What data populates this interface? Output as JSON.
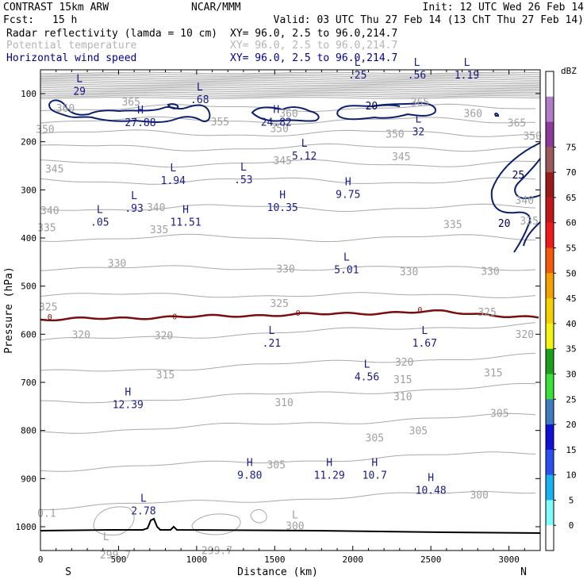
{
  "header": {
    "model": "CONTRAST 15km ARW",
    "org": "NCAR/MMM",
    "init": "Init: 12 UTC Wed 26 Feb 14",
    "fcst_label": "Fcst:",
    "fcst_value": "15 h",
    "valid": "Valid: 03 UTC Thu 27 Feb 14 (13 ChT Thu 27 Feb 14)",
    "field1_name": "Radar reflectivity (lamda = 10 cm)",
    "field1_xy": "XY=  96.0,  2.5 to  96.0,214.7",
    "field2_name": "Potential temperature",
    "field2_xy": "XY=  96.0,  2.5 to  96.0,214.7",
    "field3_name": "Horizontal wind speed",
    "field3_xy": "XY=  96.0,  2.5 to  96.0,214.7"
  },
  "chart_data": {
    "type": "contour-cross-section",
    "xlabel": "Distance (km)",
    "ylabel": "Pressure (hPa)",
    "xlim": [
      0,
      3200
    ],
    "ylim": [
      1060,
      55
    ],
    "x_ticks": [
      0,
      500,
      1000,
      1500,
      2000,
      2500,
      3000
    ],
    "y_ticks": [
      100,
      200,
      300,
      400,
      500,
      600,
      700,
      800,
      900,
      1000
    ],
    "endpoints": {
      "left": "S",
      "right": "N"
    },
    "colorbar": {
      "unit": "dBZ",
      "levels": [
        0,
        5,
        10,
        15,
        20,
        25,
        30,
        35,
        40,
        45,
        50,
        55,
        60,
        65,
        70,
        75
      ],
      "colors": [
        "#ffffff",
        "#7ffcfc",
        "#19b2f0",
        "#2b4ff0",
        "#1111d6",
        "#3f7bbf",
        "#38e038",
        "#1aa01a",
        "#f4f414",
        "#f4d000",
        "#f4a000",
        "#f45a0a",
        "#f01a1a",
        "#c01818",
        "#9b1a1a",
        "#9a5a5a",
        "#8c3a9c",
        "#b27cc8",
        "#ffffff"
      ]
    },
    "theta_labels": [
      {
        "x": 160,
        "p": 132,
        "v": "360"
      },
      {
        "x": 580,
        "p": 119,
        "v": "365"
      },
      {
        "x": 1590,
        "p": 143,
        "v": "360"
      },
      {
        "x": 2430,
        "p": 120,
        "v": "365"
      },
      {
        "x": 2770,
        "p": 143,
        "v": "360"
      },
      {
        "x": 3050,
        "p": 163,
        "v": "365"
      },
      {
        "x": 1150,
        "p": 160,
        "v": "355"
      },
      {
        "x": 30,
        "p": 176,
        "v": "350"
      },
      {
        "x": 1530,
        "p": 174,
        "v": "350"
      },
      {
        "x": 2270,
        "p": 186,
        "v": "350"
      },
      {
        "x": 3150,
        "p": 190,
        "v": "350"
      },
      {
        "x": 90,
        "p": 258,
        "v": "345"
      },
      {
        "x": 1550,
        "p": 241,
        "v": "345"
      },
      {
        "x": 2310,
        "p": 233,
        "v": "345"
      },
      {
        "x": 60,
        "p": 345,
        "v": "340"
      },
      {
        "x": 740,
        "p": 338,
        "v": "340"
      },
      {
        "x": 3100,
        "p": 323,
        "v": "340"
      },
      {
        "x": 40,
        "p": 380,
        "v": "335"
      },
      {
        "x": 760,
        "p": 384,
        "v": "335"
      },
      {
        "x": 2640,
        "p": 374,
        "v": "335"
      },
      {
        "x": 3130,
        "p": 366,
        "v": "335"
      },
      {
        "x": 490,
        "p": 454,
        "v": "330"
      },
      {
        "x": 1570,
        "p": 466,
        "v": "330"
      },
      {
        "x": 2360,
        "p": 472,
        "v": "330"
      },
      {
        "x": 2880,
        "p": 471,
        "v": "330"
      },
      {
        "x": 50,
        "p": 545,
        "v": "325"
      },
      {
        "x": 1530,
        "p": 538,
        "v": "325"
      },
      {
        "x": 2860,
        "p": 556,
        "v": "325"
      },
      {
        "x": 260,
        "p": 603,
        "v": "320"
      },
      {
        "x": 790,
        "p": 604,
        "v": "320"
      },
      {
        "x": 2330,
        "p": 660,
        "v": "320"
      },
      {
        "x": 3100,
        "p": 602,
        "v": "320"
      },
      {
        "x": 800,
        "p": 686,
        "v": "315"
      },
      {
        "x": 2320,
        "p": 696,
        "v": "315"
      },
      {
        "x": 2900,
        "p": 682,
        "v": "315"
      },
      {
        "x": 1560,
        "p": 744,
        "v": "310"
      },
      {
        "x": 2320,
        "p": 731,
        "v": "310"
      },
      {
        "x": 2940,
        "p": 766,
        "v": "305"
      },
      {
        "x": 2140,
        "p": 817,
        "v": "305"
      },
      {
        "x": 2420,
        "p": 802,
        "v": "305"
      },
      {
        "x": 1510,
        "p": 873,
        "v": "305"
      },
      {
        "x": 2810,
        "p": 936,
        "v": "300"
      },
      {
        "x": 1630,
        "p": 1000,
        "v": "300"
      },
      {
        "x": 40,
        "p": 974,
        "v": "0.1"
      },
      {
        "x": 480,
        "p": 1060,
        "v": "299.7"
      },
      {
        "x": 1130,
        "p": 1051,
        "v": "299.7"
      },
      {
        "x": 1630,
        "p": 977,
        "v": "L"
      },
      {
        "x": 420,
        "p": 1022,
        "v": "L"
      }
    ],
    "extrema": [
      {
        "x": 250,
        "p": 82,
        "type": "L",
        "v": "29"
      },
      {
        "x": 1020,
        "p": 99,
        "type": "L",
        "v": ".68"
      },
      {
        "x": 2030,
        "p": 48,
        "type": "L",
        "v": ".25"
      },
      {
        "x": 2410,
        "p": 48,
        "type": "L",
        "v": ".56"
      },
      {
        "x": 2730,
        "p": 48,
        "type": "L",
        "v": "1.19"
      },
      {
        "x": 640,
        "p": 147,
        "type": "H",
        "v": "27.88"
      },
      {
        "x": 1510,
        "p": 146,
        "type": "H",
        "v": "24.82"
      },
      {
        "x": 2420,
        "p": 166,
        "type": "L",
        "v": "32"
      },
      {
        "x": 1690,
        "p": 216,
        "type": "L",
        "v": "5.12"
      },
      {
        "x": 850,
        "p": 267,
        "type": "L",
        "v": "1.94"
      },
      {
        "x": 1300,
        "p": 266,
        "type": "L",
        "v": ".53"
      },
      {
        "x": 1970,
        "p": 296,
        "type": "H",
        "v": "9.75"
      },
      {
        "x": 1550,
        "p": 323,
        "type": "H",
        "v": "10.35"
      },
      {
        "x": 600,
        "p": 325,
        "type": "L",
        "v": ".93"
      },
      {
        "x": 380,
        "p": 354,
        "type": "L",
        "v": ".05"
      },
      {
        "x": 930,
        "p": 354,
        "type": "H",
        "v": "11.51"
      },
      {
        "x": 1960,
        "p": 453,
        "type": "L",
        "v": "5.01"
      },
      {
        "x": 1480,
        "p": 605,
        "type": "L",
        "v": ".21"
      },
      {
        "x": 2460,
        "p": 605,
        "type": "L",
        "v": "1.67"
      },
      {
        "x": 2090,
        "p": 675,
        "type": "L",
        "v": "4.56"
      },
      {
        "x": 560,
        "p": 733,
        "type": "H",
        "v": "12.39"
      },
      {
        "x": 1340,
        "p": 880,
        "type": "H",
        "v": "9.80"
      },
      {
        "x": 1850,
        "p": 880,
        "type": "H",
        "v": "11.29"
      },
      {
        "x": 2140,
        "p": 880,
        "type": "H",
        "v": "10.7"
      },
      {
        "x": 2500,
        "p": 911,
        "type": "H",
        "v": "10.48"
      },
      {
        "x": 660,
        "p": 954,
        "type": "L",
        "v": "2.78"
      }
    ],
    "wind_labels": [
      {
        "x": 2120,
        "p": 127,
        "v": "20"
      },
      {
        "x": 3060,
        "p": 271,
        "v": "25"
      },
      {
        "x": 2970,
        "p": 371,
        "v": "20"
      }
    ],
    "zero_labels": [
      {
        "x": 60,
        "p": 565,
        "v": "0"
      },
      {
        "x": 860,
        "p": 564,
        "v": "0"
      },
      {
        "x": 1650,
        "p": 557,
        "v": "0"
      },
      {
        "x": 2430,
        "p": 550,
        "v": "0"
      }
    ]
  }
}
